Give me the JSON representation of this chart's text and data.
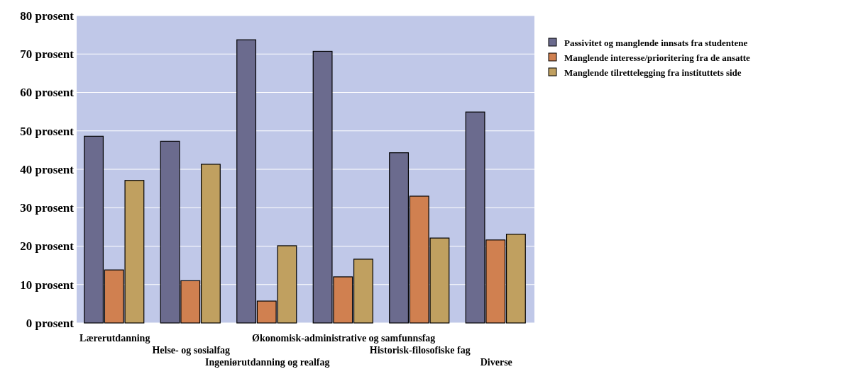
{
  "chart_data": {
    "type": "bar",
    "categories": [
      "Lærerutdanning",
      "Helse- og sosialfag",
      "Ingeniørutdanning og realfag",
      "Økonomisk-administrative og samfunnsfag",
      "Historisk-filosofiske fag",
      "Diverse"
    ],
    "series": [
      {
        "name": "Passivitet og manglende innsats fra studentene",
        "color": "#6b6b8e",
        "values": [
          48.6,
          47.3,
          73.7,
          70.7,
          44.3,
          54.9
        ]
      },
      {
        "name": "Manglende interesse/prioritering fra de ansatte",
        "color": "#d08050",
        "values": [
          13.8,
          11,
          5.7,
          12,
          33,
          21.6
        ]
      },
      {
        "name": "Manglende tilrettelegging fra instituttets side",
        "color": "#c0a060",
        "values": [
          37.1,
          41.3,
          20.1,
          16.6,
          22.1,
          23.1
        ]
      }
    ],
    "ylim": [
      0,
      80
    ],
    "yticks": [
      {
        "value": 0,
        "label": "0 prosent"
      },
      {
        "value": 10,
        "label": "10 prosent"
      },
      {
        "value": 20,
        "label": "20 prosent"
      },
      {
        "value": 30,
        "label": "30 prosent"
      },
      {
        "value": 40,
        "label": "40 prosent"
      },
      {
        "value": 50,
        "label": "50 prosent"
      },
      {
        "value": 60,
        "label": "60 prosent"
      },
      {
        "value": 70,
        "label": "70 prosent"
      },
      {
        "value": 80,
        "label": "80 prosent"
      }
    ],
    "grid": "y",
    "legend": "top right"
  }
}
